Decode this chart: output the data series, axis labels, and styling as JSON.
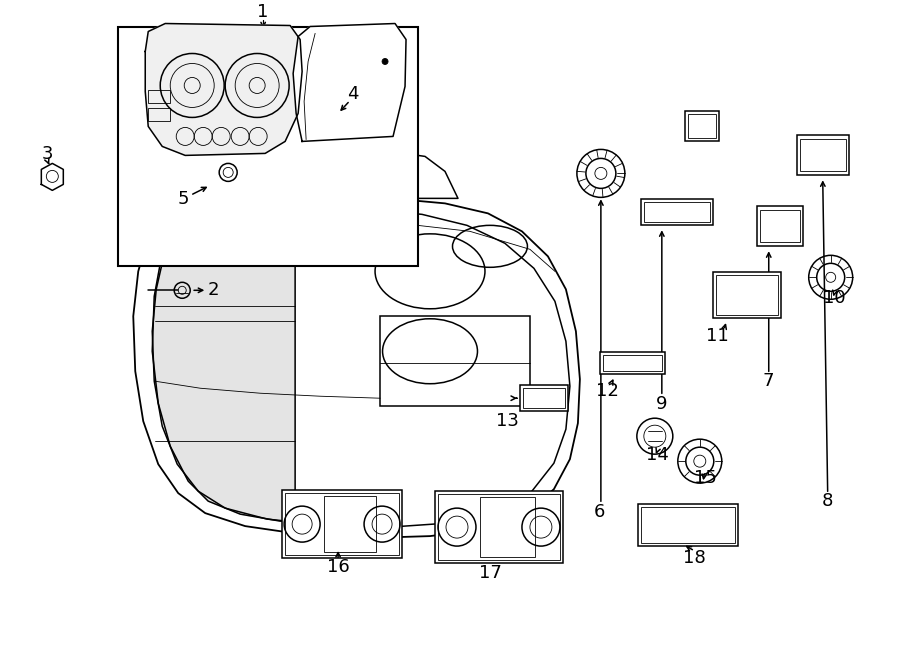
{
  "bg_color": "#ffffff",
  "line_color": "#000000",
  "lw_main": 1.1,
  "lw_thin": 0.6,
  "font_size": 13
}
